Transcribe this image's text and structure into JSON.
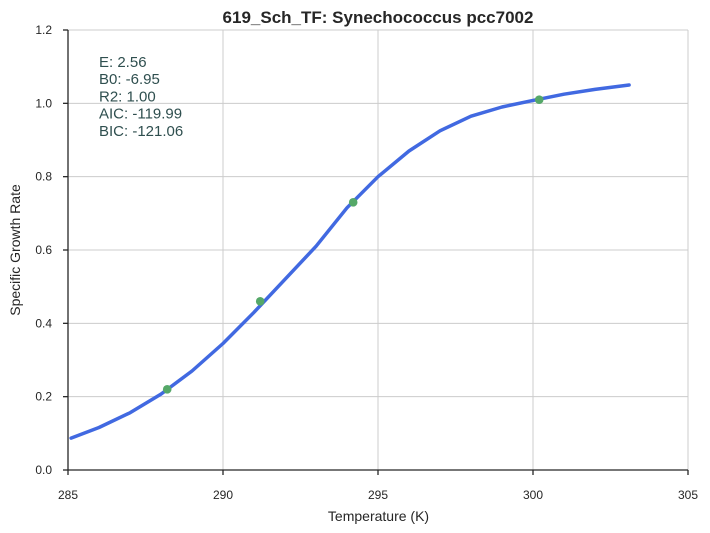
{
  "chart_data": {
    "type": "line",
    "title": "619_Sch_TF: Synechococcus pcc7002",
    "xlabel": "Temperature (K)",
    "ylabel": "Specific Growth Rate",
    "xlim": [
      285,
      305
    ],
    "ylim": [
      0,
      1.2
    ],
    "xticks": [
      285,
      290,
      295,
      300,
      305
    ],
    "yticks": [
      0.0,
      0.2,
      0.4,
      0.6,
      0.8,
      1.0,
      1.2
    ],
    "ytick_labels": [
      "0.0",
      "0.2",
      "0.4",
      "0.6",
      "0.8",
      "1.0",
      "1.2"
    ],
    "grid": true,
    "series": [
      {
        "kind": "fit-line",
        "color": "#4169e1",
        "x": [
          285.1,
          286.0,
          287.0,
          288.0,
          289.0,
          290.0,
          291.0,
          292.0,
          293.0,
          294.0,
          295.0,
          296.0,
          297.0,
          298.0,
          299.0,
          300.0,
          301.0,
          302.0,
          303.1
        ],
        "y": [
          0.087,
          0.116,
          0.156,
          0.207,
          0.27,
          0.345,
          0.43,
          0.52,
          0.61,
          0.715,
          0.8,
          0.87,
          0.925,
          0.965,
          0.99,
          1.008,
          1.025,
          1.038,
          1.05
        ]
      },
      {
        "kind": "observed-points",
        "color": "#55a868",
        "x": [
          288.2,
          291.2,
          294.2,
          300.2
        ],
        "y": [
          0.22,
          0.46,
          0.73,
          1.01
        ]
      }
    ],
    "annotations": [
      "E:  2.56",
      "B0:  -6.95",
      "R2:  1.00",
      "AIC: -119.99",
      "BIC: -121.06"
    ]
  }
}
